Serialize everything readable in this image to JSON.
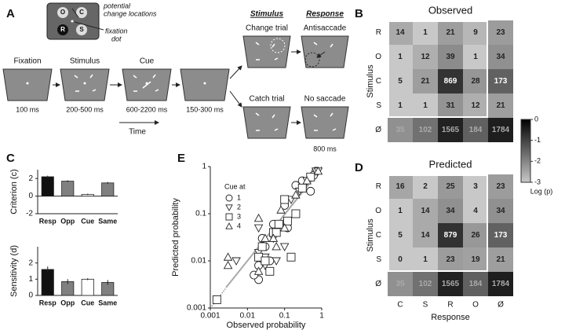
{
  "panel_a": {
    "label": "A",
    "inset": {
      "title": [
        "potential",
        "change locations"
      ],
      "locations": [
        "R",
        "O",
        "C",
        "S"
      ],
      "fixation": [
        "fixation",
        "dot"
      ]
    },
    "timeline": [
      {
        "name": "Fixation",
        "duration": "100 ms"
      },
      {
        "name": "Stimulus",
        "duration": "200-500 ms"
      },
      {
        "name": "Cue",
        "duration": "600-2200 ms"
      },
      {
        "duration": "150-300 ms"
      }
    ],
    "stimulus_header": "Stimulus",
    "response_header": "Response",
    "branches": [
      {
        "trial": "Change trial",
        "response": "Antisaccade"
      },
      {
        "trial": "Catch trial",
        "response": "No saccade",
        "duration": "800 ms"
      }
    ],
    "time": "Time"
  },
  "chart_data": [
    {
      "type": "heatmap",
      "panel": "B",
      "title": "Observed",
      "ylabel": "Stimulus",
      "rows": [
        "R",
        "O",
        "C",
        "S",
        "Ø"
      ],
      "values": [
        [
          14,
          1,
          21,
          9,
          23
        ],
        [
          1,
          12,
          39,
          1,
          34
        ],
        [
          5,
          21,
          869,
          28,
          173
        ],
        [
          1,
          1,
          31,
          12,
          21
        ],
        [
          35,
          102,
          1565,
          184,
          1784
        ]
      ],
      "colorbar": {
        "clim": [
          -3,
          0
        ],
        "cticks": [
          0,
          -1,
          -2,
          -3
        ],
        "label": "Log (p)"
      }
    },
    {
      "type": "heatmap",
      "panel": "D",
      "title": "Predicted",
      "ylabel": "Stimulus",
      "xlabel": "Response",
      "rows": [
        "R",
        "O",
        "C",
        "S",
        "Ø"
      ],
      "columns": [
        "C",
        "S",
        "R",
        "O",
        "Ø"
      ],
      "values": [
        [
          16,
          2,
          25,
          3,
          23
        ],
        [
          1,
          14,
          34,
          4,
          34
        ],
        [
          5,
          14,
          879,
          26,
          173
        ],
        [
          0,
          1,
          23,
          19,
          21
        ],
        [
          35,
          102,
          1565,
          184,
          1784
        ]
      ]
    },
    {
      "type": "bar",
      "panel": "C",
      "ylabel": "Criterion (c)",
      "categories": [
        "Resp",
        "Opp",
        "Cue",
        "Same"
      ],
      "values": [
        2.2,
        1.7,
        0.2,
        1.5
      ],
      "errors": [
        0.12,
        0.1,
        0.08,
        0.1
      ],
      "colors": [
        "#111111",
        "#808080",
        "#ffffff",
        "#808080"
      ],
      "ylim": [
        -2,
        3
      ],
      "yticks": [
        -2,
        0,
        2
      ]
    },
    {
      "type": "bar",
      "ylabel": "Sensitivity (d)",
      "categories": [
        "Resp",
        "Opp",
        "Cue",
        "Same"
      ],
      "values": [
        1.6,
        0.85,
        1.0,
        0.8
      ],
      "errors": [
        0.18,
        0.15,
        0.06,
        0.15
      ],
      "colors": [
        "#111111",
        "#808080",
        "#ffffff",
        "#808080"
      ],
      "ylim": [
        0,
        3
      ],
      "yticks": [
        0,
        1,
        2
      ]
    },
    {
      "type": "scatter",
      "panel": "E",
      "xlabel": "Observed probability",
      "ylabel": "Predicted probability",
      "log": true,
      "legend_title": "Cue at",
      "xlim": [
        0.001,
        1
      ],
      "ylim": [
        0.001,
        1
      ],
      "xticks": [
        0.001,
        0.01,
        0.1,
        1
      ],
      "yticks": [
        0.001,
        0.01,
        0.1,
        1
      ],
      "series": [
        {
          "name": "1",
          "marker": "o",
          "x": [
            0.02,
            0.03,
            0.1,
            0.2,
            0.5,
            0.7,
            0.02,
            0.015,
            0.05,
            0.3,
            0.12,
            0.6,
            0.025,
            0.04
          ],
          "y": [
            0.008,
            0.02,
            0.15,
            0.4,
            0.3,
            0.8,
            0.004,
            0.005,
            0.06,
            0.5,
            0.05,
            0.65,
            0.03,
            0.01
          ]
        },
        {
          "name": "2",
          "marker": "v",
          "x": [
            0.005,
            0.02,
            0.03,
            0.05,
            0.1,
            0.15,
            0.25,
            0.4,
            0.7,
            0.02,
            0.03,
            0.06,
            0.8
          ],
          "y": [
            0.01,
            0.015,
            0.012,
            0.03,
            0.02,
            0.2,
            0.3,
            0.5,
            0.8,
            0.05,
            0.008,
            0.01,
            0.8
          ]
        },
        {
          "name": "3",
          "marker": "s",
          "x": [
            0.0015,
            0.02,
            0.03,
            0.04,
            0.05,
            0.07,
            0.1,
            0.12,
            0.2,
            0.15,
            0.3,
            0.5,
            0.06,
            0.025
          ],
          "y": [
            0.0015,
            0.012,
            0.01,
            0.006,
            0.04,
            0.06,
            0.2,
            0.07,
            0.1,
            0.012,
            0.35,
            0.6,
            0.04,
            0.02
          ]
        },
        {
          "name": "4",
          "marker": "^",
          "x": [
            0.003,
            0.003,
            0.02,
            0.03,
            0.05,
            0.1,
            0.2,
            0.4,
            0.8,
            0.02,
            0.08,
            0.06
          ],
          "y": [
            0.012,
            0.008,
            0.006,
            0.03,
            0.03,
            0.05,
            0.25,
            0.5,
            0.8,
            0.08,
            0.12,
            0.02
          ]
        }
      ]
    }
  ]
}
